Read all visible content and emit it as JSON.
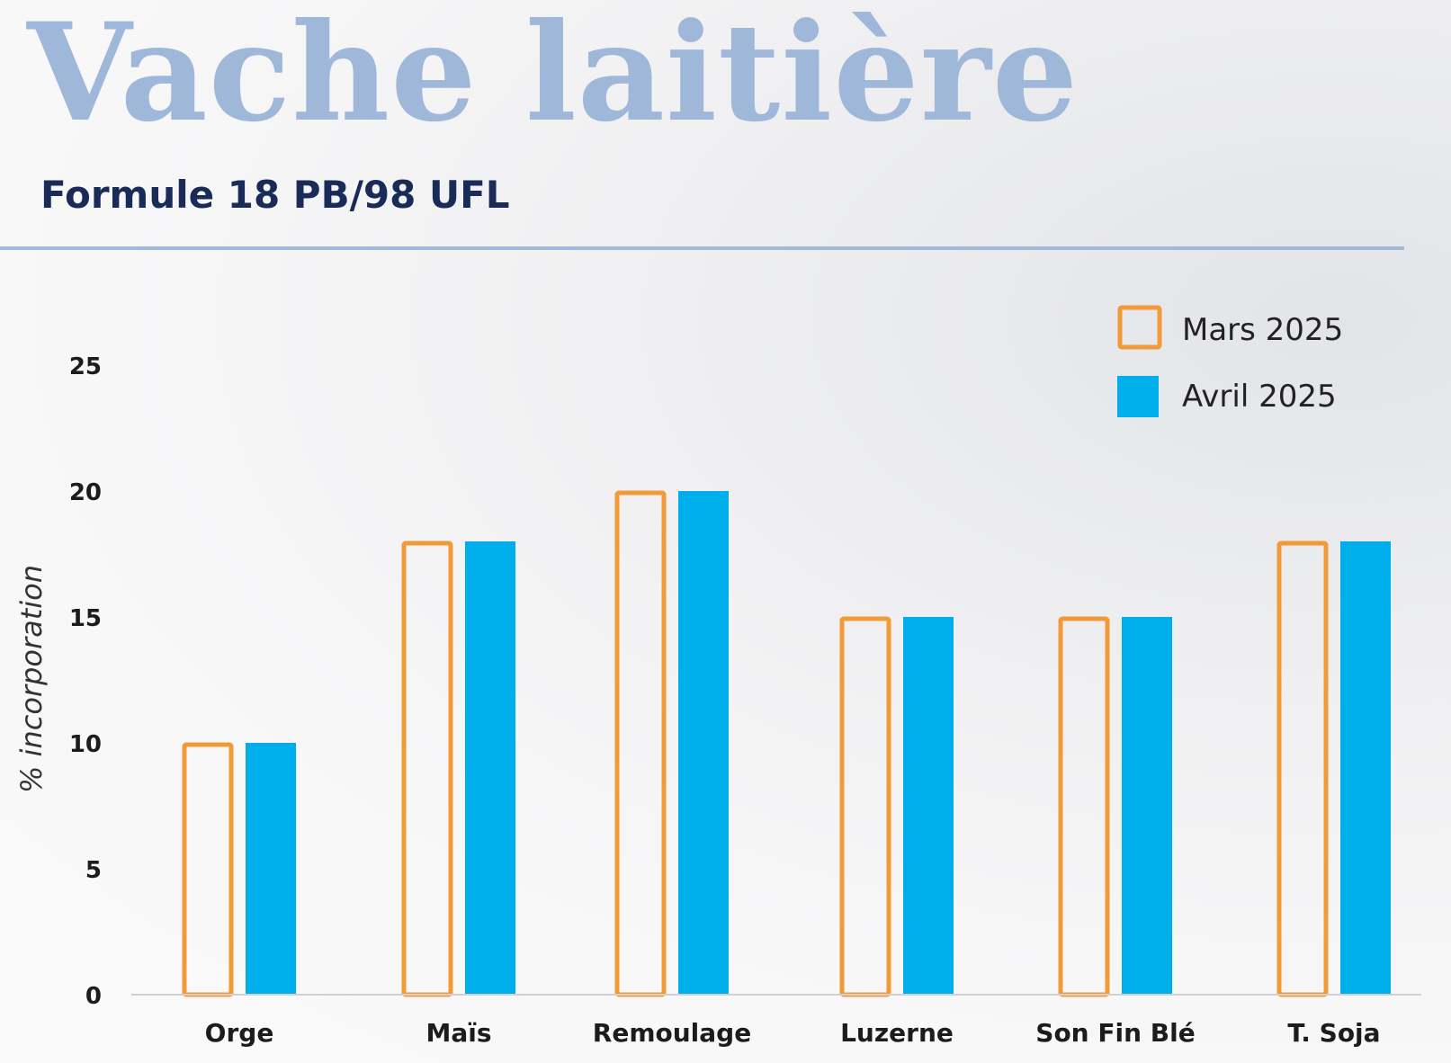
{
  "header": {
    "title": "Vache laitière",
    "subtitle": "Formule 18 PB/98 UFL"
  },
  "colors": {
    "title": "#9fb8d9",
    "subtitle": "#1b2b57",
    "rule": "#a4b9d8",
    "mars_outline": "#f29a38",
    "avril_fill": "#00aeeb",
    "axis_line": "#d0d0d0"
  },
  "chart_data": {
    "type": "bar",
    "ylabel": "% incorporation",
    "xlabel": "",
    "ylim": [
      0,
      25
    ],
    "yticks": [
      0,
      5,
      10,
      15,
      20,
      25
    ],
    "grid": false,
    "legend_position": "top-right",
    "categories": [
      "Orge",
      "Maïs",
      "Remoulage",
      "Luzerne",
      "Son Fin Blé",
      "T. Soja"
    ],
    "series": [
      {
        "name": "Mars 2025",
        "style": "outline",
        "color": "#f29a38",
        "values": [
          10,
          18,
          20,
          15,
          15,
          18
        ]
      },
      {
        "name": "Avril 2025",
        "style": "filled",
        "color": "#00aeeb",
        "values": [
          10,
          18,
          20,
          15,
          15,
          18
        ]
      }
    ]
  }
}
